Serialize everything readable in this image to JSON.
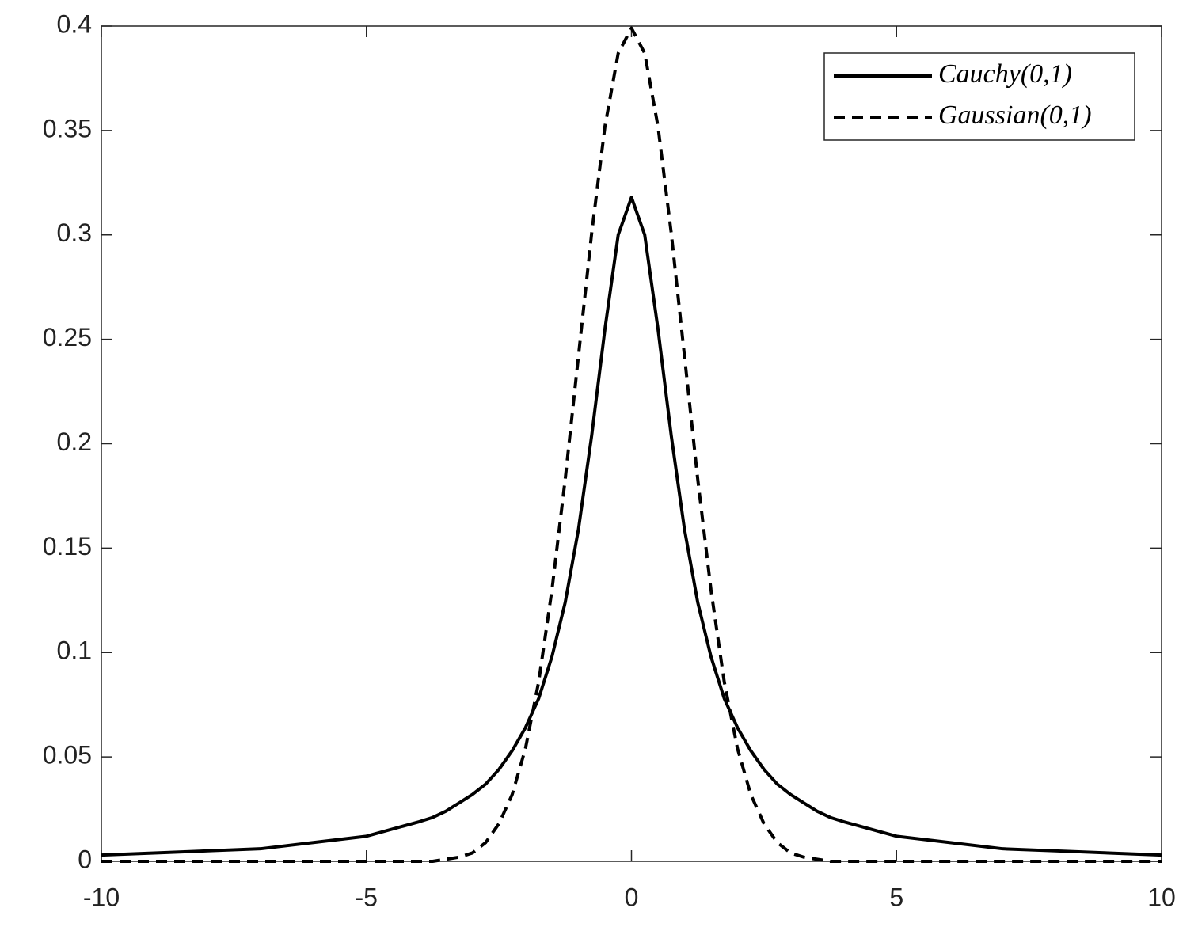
{
  "chart_data": {
    "type": "line",
    "x": [
      -10,
      -9,
      -8,
      -7,
      -6,
      -5,
      -4,
      -3.75,
      -3.5,
      -3.25,
      -3,
      -2.75,
      -2.5,
      -2.25,
      -2,
      -1.75,
      -1.5,
      -1.25,
      -1,
      -0.75,
      -0.5,
      -0.25,
      0,
      0.25,
      0.5,
      0.75,
      1,
      1.25,
      1.5,
      1.75,
      2,
      2.25,
      2.5,
      2.75,
      3,
      3.25,
      3.5,
      3.75,
      4,
      5,
      6,
      7,
      8,
      9,
      10
    ],
    "series": [
      {
        "name": "Cauchy(0,1)",
        "color": "#000000",
        "linestyle": "solid",
        "values": [
          0.003,
          0.004,
          0.005,
          0.006,
          0.009,
          0.012,
          0.019,
          0.021,
          0.024,
          0.028,
          0.032,
          0.037,
          0.044,
          0.053,
          0.064,
          0.078,
          0.098,
          0.124,
          0.159,
          0.204,
          0.255,
          0.3,
          0.318,
          0.3,
          0.255,
          0.204,
          0.159,
          0.124,
          0.098,
          0.078,
          0.064,
          0.053,
          0.044,
          0.037,
          0.032,
          0.028,
          0.024,
          0.021,
          0.019,
          0.012,
          0.009,
          0.006,
          0.005,
          0.004,
          0.003
        ]
      },
      {
        "name": "Gaussian(0,1)",
        "color": "#000000",
        "linestyle": "dashed",
        "values": [
          0,
          0,
          0,
          0,
          0,
          0,
          0,
          0,
          0.001,
          0.002,
          0.004,
          0.009,
          0.018,
          0.032,
          0.054,
          0.086,
          0.13,
          0.183,
          0.242,
          0.301,
          0.352,
          0.387,
          0.399,
          0.387,
          0.352,
          0.301,
          0.242,
          0.183,
          0.13,
          0.086,
          0.054,
          0.032,
          0.018,
          0.009,
          0.004,
          0.002,
          0.001,
          0,
          0,
          0,
          0,
          0,
          0,
          0,
          0
        ]
      }
    ],
    "xlim": [
      -10,
      10
    ],
    "xticks": [
      -10,
      -5,
      0,
      5,
      10
    ],
    "ylim": [
      0,
      0.4
    ],
    "yticks": [
      0,
      0.05,
      0.1,
      0.15,
      0.2,
      0.25,
      0.3,
      0.35,
      0.4
    ],
    "grid": false,
    "legend": "upper right"
  }
}
